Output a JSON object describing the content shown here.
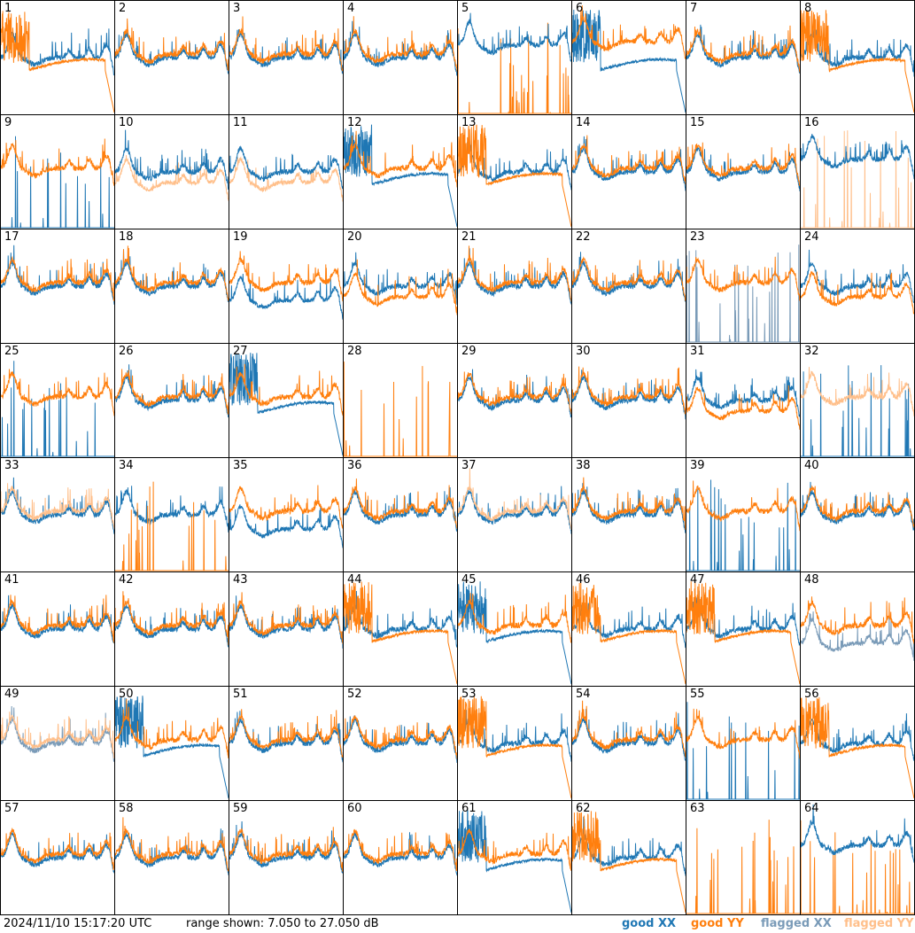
{
  "footer": {
    "timestamp": "2024/11/10 15:17:20 UTC",
    "range_text": "range shown: 7.050 to 27.050 dB"
  },
  "legend": [
    {
      "label": "good XX",
      "color": "#1f77b4"
    },
    {
      "label": "good YY",
      "color": "#ff7f0e"
    },
    {
      "label": "flagged XX",
      "color": "#7a9bb8"
    },
    {
      "label": "flagged YY",
      "color": "#ffbf8a"
    }
  ],
  "chart_data": {
    "type": "line",
    "grid": "8x8",
    "ylim_db": [
      7.05,
      27.05
    ],
    "series_names": [
      "good XX",
      "good YY",
      "flagged XX",
      "flagged YY"
    ],
    "panels": [
      {
        "n": "1",
        "xx": "good",
        "yy": "good",
        "xx_shape": "normal",
        "yy_shape": "decay",
        "top": "yy"
      },
      {
        "n": "2",
        "xx": "good",
        "yy": "good",
        "xx_shape": "normal",
        "yy_shape": "normal",
        "top": "yy"
      },
      {
        "n": "3",
        "xx": "good",
        "yy": "good",
        "xx_shape": "normal",
        "yy_shape": "normal",
        "top": "yy"
      },
      {
        "n": "4",
        "xx": "good",
        "yy": "good",
        "xx_shape": "normal",
        "yy_shape": "normal",
        "top": "yy"
      },
      {
        "n": "5",
        "xx": "good",
        "yy": "good",
        "xx_shape": "high",
        "yy_shape": "dead",
        "top": "xx"
      },
      {
        "n": "6",
        "xx": "good",
        "yy": "good",
        "xx_shape": "decay",
        "yy_shape": "high",
        "top": "yy"
      },
      {
        "n": "7",
        "xx": "good",
        "yy": "good",
        "xx_shape": "normal",
        "yy_shape": "normal",
        "top": "yy"
      },
      {
        "n": "8",
        "xx": "good",
        "yy": "good",
        "xx_shape": "normal",
        "yy_shape": "decay",
        "top": "yy"
      },
      {
        "n": "9",
        "xx": "good",
        "yy": "good",
        "xx_shape": "dead",
        "yy_shape": "normal",
        "top": "yy"
      },
      {
        "n": "10",
        "xx": "good",
        "yy": "flagged",
        "xx_shape": "normal",
        "yy_shape": "low",
        "top": "xx"
      },
      {
        "n": "11",
        "xx": "good",
        "yy": "flagged",
        "xx_shape": "normal",
        "yy_shape": "low",
        "top": "xx"
      },
      {
        "n": "12",
        "xx": "good",
        "yy": "good",
        "xx_shape": "decay",
        "yy_shape": "normal",
        "top": "yy"
      },
      {
        "n": "13",
        "xx": "good",
        "yy": "good",
        "xx_shape": "normal",
        "yy_shape": "decay",
        "top": "yy"
      },
      {
        "n": "14",
        "xx": "good",
        "yy": "good",
        "xx_shape": "normal",
        "yy_shape": "normal",
        "top": "yy"
      },
      {
        "n": "15",
        "xx": "good",
        "yy": "good",
        "xx_shape": "normal",
        "yy_shape": "normal",
        "top": "yy"
      },
      {
        "n": "16",
        "xx": "good",
        "yy": "flagged",
        "xx_shape": "high",
        "yy_shape": "dead",
        "top": "xx"
      },
      {
        "n": "17",
        "xx": "good",
        "yy": "good",
        "xx_shape": "normal",
        "yy_shape": "normal",
        "top": "yy"
      },
      {
        "n": "18",
        "xx": "good",
        "yy": "good",
        "xx_shape": "normal",
        "yy_shape": "normal",
        "top": "yy"
      },
      {
        "n": "19",
        "xx": "good",
        "yy": "good",
        "xx_shape": "low",
        "yy_shape": "normal",
        "top": "yy"
      },
      {
        "n": "20",
        "xx": "good",
        "yy": "good",
        "xx_shape": "normal",
        "yy_shape": "low",
        "top": "yy"
      },
      {
        "n": "21",
        "xx": "good",
        "yy": "good",
        "xx_shape": "normal",
        "yy_shape": "normal",
        "top": "yy"
      },
      {
        "n": "22",
        "xx": "good",
        "yy": "good",
        "xx_shape": "normal",
        "yy_shape": "normal",
        "top": "yy"
      },
      {
        "n": "23",
        "xx": "flagged",
        "yy": "good",
        "xx_shape": "dead",
        "yy_shape": "normal",
        "top": "yy"
      },
      {
        "n": "24",
        "xx": "good",
        "yy": "good",
        "xx_shape": "normal",
        "yy_shape": "low",
        "top": "yy"
      },
      {
        "n": "25",
        "xx": "good",
        "yy": "good",
        "xx_shape": "dead",
        "yy_shape": "normal",
        "top": "yy"
      },
      {
        "n": "26",
        "xx": "good",
        "yy": "good",
        "xx_shape": "normal",
        "yy_shape": "normal",
        "top": "yy"
      },
      {
        "n": "27",
        "xx": "good",
        "yy": "good",
        "xx_shape": "decay",
        "yy_shape": "normal",
        "top": "yy"
      },
      {
        "n": "28",
        "xx": "good",
        "yy": "good",
        "xx_shape": "none",
        "yy_shape": "dead",
        "top": "yy"
      },
      {
        "n": "29",
        "xx": "good",
        "yy": "good",
        "xx_shape": "normal",
        "yy_shape": "normal",
        "top": "yy"
      },
      {
        "n": "30",
        "xx": "good",
        "yy": "good",
        "xx_shape": "normal",
        "yy_shape": "normal",
        "top": "yy"
      },
      {
        "n": "31",
        "xx": "good",
        "yy": "good",
        "xx_shape": "normal",
        "yy_shape": "low",
        "top": "yy"
      },
      {
        "n": "32",
        "xx": "good",
        "yy": "flagged",
        "xx_shape": "dead",
        "yy_shape": "normal",
        "top": "yy"
      },
      {
        "n": "33",
        "xx": "good",
        "yy": "flagged",
        "xx_shape": "normal",
        "yy_shape": "normal",
        "top": "yy"
      },
      {
        "n": "34",
        "xx": "good",
        "yy": "good",
        "xx_shape": "normal",
        "yy_shape": "dead",
        "top": "yy"
      },
      {
        "n": "35",
        "xx": "good",
        "yy": "good",
        "xx_shape": "low",
        "yy_shape": "normal",
        "top": "yy"
      },
      {
        "n": "36",
        "xx": "good",
        "yy": "good",
        "xx_shape": "normal",
        "yy_shape": "normal",
        "top": "yy"
      },
      {
        "n": "37",
        "xx": "good",
        "yy": "flagged",
        "xx_shape": "normal",
        "yy_shape": "normal",
        "top": "yy"
      },
      {
        "n": "38",
        "xx": "good",
        "yy": "good",
        "xx_shape": "normal",
        "yy_shape": "normal",
        "top": "yy"
      },
      {
        "n": "39",
        "xx": "good",
        "yy": "good",
        "xx_shape": "dead",
        "yy_shape": "normal",
        "top": "yy"
      },
      {
        "n": "40",
        "xx": "good",
        "yy": "good",
        "xx_shape": "normal",
        "yy_shape": "normal",
        "top": "yy"
      },
      {
        "n": "41",
        "xx": "good",
        "yy": "good",
        "xx_shape": "normal",
        "yy_shape": "normal",
        "top": "yy"
      },
      {
        "n": "42",
        "xx": "good",
        "yy": "good",
        "xx_shape": "normal",
        "yy_shape": "normal",
        "top": "yy"
      },
      {
        "n": "43",
        "xx": "good",
        "yy": "good",
        "xx_shape": "normal",
        "yy_shape": "normal",
        "top": "yy"
      },
      {
        "n": "44",
        "xx": "good",
        "yy": "good",
        "xx_shape": "normal",
        "yy_shape": "decay",
        "top": "yy"
      },
      {
        "n": "45",
        "xx": "good",
        "yy": "good",
        "xx_shape": "decay",
        "yy_shape": "normal",
        "top": "yy"
      },
      {
        "n": "46",
        "xx": "good",
        "yy": "good",
        "xx_shape": "normal",
        "yy_shape": "decay",
        "top": "yy"
      },
      {
        "n": "47",
        "xx": "good",
        "yy": "good",
        "xx_shape": "normal",
        "yy_shape": "decay",
        "top": "yy"
      },
      {
        "n": "48",
        "xx": "flagged",
        "yy": "good",
        "xx_shape": "low",
        "yy_shape": "normal",
        "top": "yy"
      },
      {
        "n": "49",
        "xx": "flagged",
        "yy": "flagged",
        "xx_shape": "normal",
        "yy_shape": "normal",
        "top": "yy"
      },
      {
        "n": "50",
        "xx": "good",
        "yy": "good",
        "xx_shape": "decay",
        "yy_shape": "normal",
        "top": "yy"
      },
      {
        "n": "51",
        "xx": "good",
        "yy": "good",
        "xx_shape": "normal",
        "yy_shape": "normal",
        "top": "yy"
      },
      {
        "n": "52",
        "xx": "good",
        "yy": "good",
        "xx_shape": "normal",
        "yy_shape": "normal",
        "top": "yy"
      },
      {
        "n": "53",
        "xx": "good",
        "yy": "good",
        "xx_shape": "normal",
        "yy_shape": "decay",
        "top": "yy"
      },
      {
        "n": "54",
        "xx": "good",
        "yy": "good",
        "xx_shape": "normal",
        "yy_shape": "normal",
        "top": "yy"
      },
      {
        "n": "55",
        "xx": "good",
        "yy": "good",
        "xx_shape": "dead",
        "yy_shape": "normal",
        "top": "yy"
      },
      {
        "n": "56",
        "xx": "good",
        "yy": "good",
        "xx_shape": "normal",
        "yy_shape": "decay",
        "top": "yy"
      },
      {
        "n": "57",
        "xx": "good",
        "yy": "good",
        "xx_shape": "normal",
        "yy_shape": "normal",
        "top": "yy"
      },
      {
        "n": "58",
        "xx": "good",
        "yy": "good",
        "xx_shape": "normal",
        "yy_shape": "normal",
        "top": "yy"
      },
      {
        "n": "59",
        "xx": "good",
        "yy": "good",
        "xx_shape": "normal",
        "yy_shape": "normal",
        "top": "yy"
      },
      {
        "n": "60",
        "xx": "good",
        "yy": "good",
        "xx_shape": "normal",
        "yy_shape": "normal",
        "top": "yy"
      },
      {
        "n": "61",
        "xx": "good",
        "yy": "good",
        "xx_shape": "decay",
        "yy_shape": "normal",
        "top": "yy"
      },
      {
        "n": "62",
        "xx": "good",
        "yy": "good",
        "xx_shape": "normal",
        "yy_shape": "decay",
        "top": "yy"
      },
      {
        "n": "63",
        "xx": "good",
        "yy": "good",
        "xx_shape": "none",
        "yy_shape": "dead",
        "top": "yy"
      },
      {
        "n": "64",
        "xx": "good",
        "yy": "good",
        "xx_shape": "high",
        "yy_shape": "dead",
        "top": "xx"
      }
    ]
  }
}
